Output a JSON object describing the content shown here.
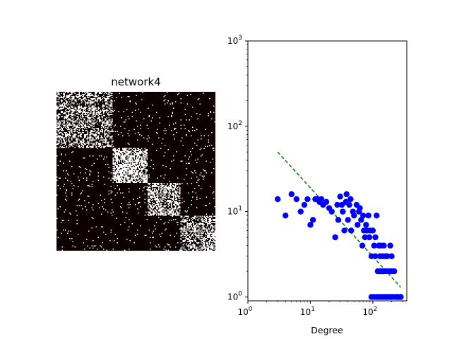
{
  "chart_data": [
    {
      "type": "heatmap",
      "title": "network4",
      "colormap": "hot",
      "background_color": "#0c0000",
      "foreground_color": "#ffffff",
      "description_blocks": [
        {
          "rows": [
            0.0,
            0.35
          ],
          "cols": [
            0.0,
            0.35
          ],
          "density": 0.42
        },
        {
          "rows": [
            0.35,
            0.57
          ],
          "cols": [
            0.35,
            0.57
          ],
          "density": 0.7
        },
        {
          "rows": [
            0.57,
            0.78
          ],
          "cols": [
            0.57,
            0.78
          ],
          "density": 0.55
        },
        {
          "rows": [
            0.78,
            1.0
          ],
          "cols": [
            0.78,
            1.0
          ],
          "density": 0.45
        }
      ]
    },
    {
      "type": "scatter",
      "xlabel": "Degree",
      "ylabel": "",
      "xscale": "log",
      "yscale": "log",
      "xlim": [
        1,
        350
      ],
      "ylim": [
        0.9,
        1000
      ],
      "x_ticks": [
        1,
        10,
        100
      ],
      "y_ticks": [
        1,
        10,
        100,
        1000
      ],
      "point_color": "#0000ff",
      "fit_line": {
        "color": "#008000",
        "style": "dashed",
        "x": [
          3,
          280
        ],
        "y": [
          50,
          1.3
        ]
      },
      "points": [
        [
          3,
          14
        ],
        [
          4,
          9
        ],
        [
          5,
          16
        ],
        [
          6,
          14
        ],
        [
          7,
          10
        ],
        [
          8,
          12
        ],
        [
          9,
          14
        ],
        [
          10,
          7
        ],
        [
          11,
          8
        ],
        [
          12,
          14
        ],
        [
          13,
          14
        ],
        [
          14,
          13
        ],
        [
          15,
          14
        ],
        [
          16,
          12
        ],
        [
          18,
          13
        ],
        [
          20,
          11
        ],
        [
          22,
          10
        ],
        [
          25,
          5
        ],
        [
          27,
          12
        ],
        [
          28,
          8
        ],
        [
          30,
          15
        ],
        [
          32,
          12
        ],
        [
          33,
          10
        ],
        [
          35,
          6
        ],
        [
          37,
          13
        ],
        [
          38,
          16
        ],
        [
          40,
          8
        ],
        [
          42,
          12
        ],
        [
          44,
          14
        ],
        [
          45,
          6
        ],
        [
          48,
          10
        ],
        [
          50,
          9
        ],
        [
          55,
          12
        ],
        [
          57,
          7
        ],
        [
          60,
          10
        ],
        [
          62,
          11
        ],
        [
          65,
          8
        ],
        [
          68,
          4
        ],
        [
          70,
          9
        ],
        [
          72,
          6
        ],
        [
          75,
          5
        ],
        [
          78,
          7
        ],
        [
          80,
          6
        ],
        [
          85,
          9
        ],
        [
          88,
          5
        ],
        [
          90,
          6
        ],
        [
          95,
          3
        ],
        [
          100,
          6
        ],
        [
          105,
          4
        ],
        [
          110,
          5
        ],
        [
          115,
          9
        ],
        [
          120,
          2
        ],
        [
          125,
          4
        ],
        [
          130,
          3
        ],
        [
          135,
          4
        ],
        [
          140,
          2
        ],
        [
          145,
          3
        ],
        [
          150,
          4
        ],
        [
          160,
          2
        ],
        [
          170,
          3
        ],
        [
          180,
          2
        ],
        [
          190,
          4
        ],
        [
          200,
          2
        ],
        [
          210,
          1
        ],
        [
          220,
          2
        ],
        [
          240,
          1
        ],
        [
          260,
          1
        ],
        [
          280,
          1
        ],
        [
          95,
          1
        ],
        [
          105,
          1
        ],
        [
          115,
          1
        ],
        [
          125,
          1
        ],
        [
          135,
          1
        ],
        [
          145,
          1
        ],
        [
          155,
          1
        ],
        [
          165,
          1
        ],
        [
          175,
          1
        ],
        [
          185,
          1
        ],
        [
          195,
          1
        ],
        [
          230,
          1
        ],
        [
          110,
          3
        ],
        [
          160,
          3
        ],
        [
          200,
          3
        ],
        [
          130,
          2
        ],
        [
          150,
          2
        ],
        [
          250,
          1
        ]
      ]
    }
  ]
}
